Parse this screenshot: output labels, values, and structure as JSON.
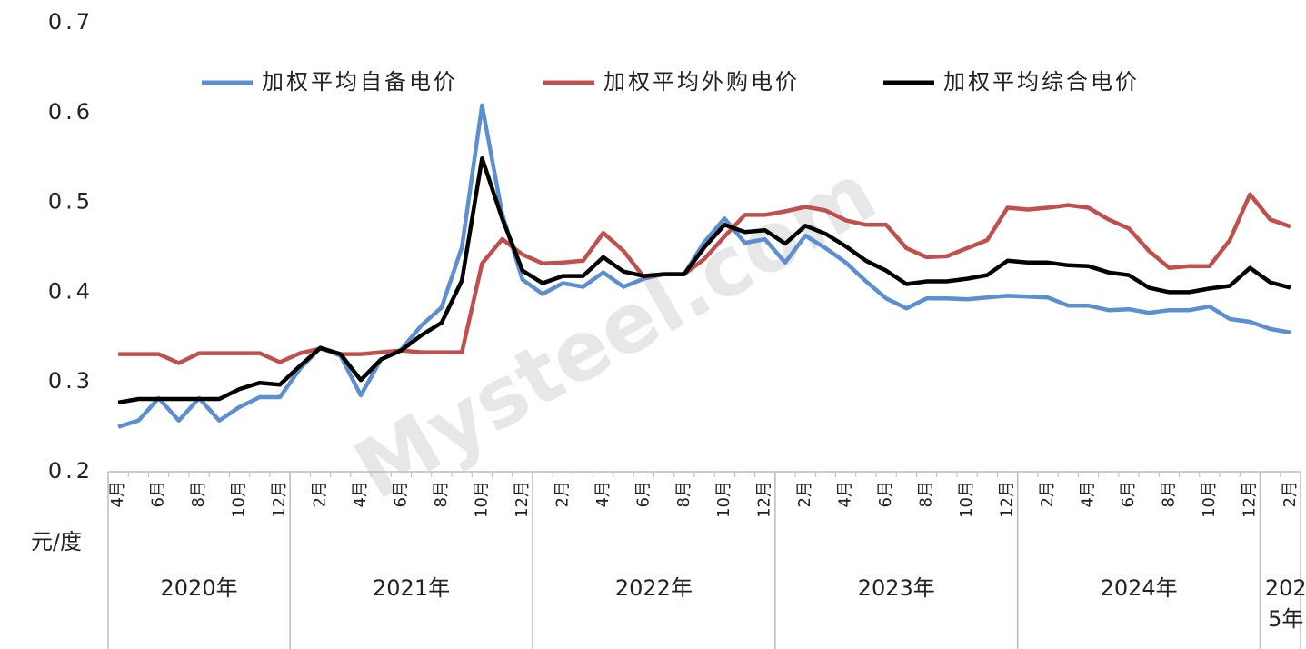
{
  "chart_data": {
    "type": "line",
    "y_unit_label": "元/度",
    "watermark": "Mysteel.com",
    "categories": [
      "4月",
      null,
      "6月",
      null,
      "8月",
      null,
      "10月",
      null,
      "12月",
      null,
      "2月",
      null,
      "4月",
      null,
      "6月",
      null,
      "8月",
      null,
      "10月",
      null,
      "12月",
      null,
      "2月",
      null,
      "4月",
      null,
      "6月",
      null,
      "8月",
      null,
      "10月",
      null,
      "12月",
      null,
      "2月",
      null,
      "4月",
      null,
      "6月",
      null,
      "8月",
      null,
      "10月",
      null,
      "12月",
      null,
      "2月",
      null,
      "4月",
      null,
      "6月",
      null,
      "8月",
      null,
      "10月",
      null,
      "12月",
      null,
      "2月"
    ],
    "groups": [
      {
        "label": "2020年",
        "size": 9
      },
      {
        "label": "2021年",
        "size": 12
      },
      {
        "label": "2022年",
        "size": 12
      },
      {
        "label": "2023年",
        "size": 12
      },
      {
        "label": "2024年",
        "size": 12
      },
      {
        "label": "2025年",
        "size": 2
      }
    ],
    "series": [
      {
        "name": "加权平均自备电价",
        "color": "#5b8fd0",
        "values": [
          0.25,
          0.257,
          0.282,
          0.257,
          0.282,
          0.257,
          0.272,
          0.283,
          0.283,
          0.315,
          0.338,
          0.329,
          0.285,
          0.325,
          0.336,
          0.363,
          0.383,
          0.45,
          0.608,
          0.487,
          0.414,
          0.398,
          0.41,
          0.406,
          0.422,
          0.406,
          0.415,
          0.42,
          0.42,
          0.456,
          0.482,
          0.455,
          0.459,
          0.433,
          0.463,
          0.449,
          0.433,
          0.412,
          0.393,
          0.382,
          0.393,
          0.393,
          0.392,
          0.394,
          0.396,
          0.395,
          0.394,
          0.385,
          0.385,
          0.38,
          0.381,
          0.377,
          0.38,
          0.38,
          0.384,
          0.37,
          0.367,
          0.359,
          0.355
        ]
      },
      {
        "name": "加权平均外购电价",
        "color": "#c0504d",
        "values": [
          0.331,
          0.331,
          0.331,
          0.321,
          0.332,
          0.332,
          0.332,
          0.332,
          0.322,
          0.332,
          0.337,
          0.331,
          0.331,
          0.333,
          0.335,
          0.333,
          0.333,
          0.333,
          0.432,
          0.459,
          0.442,
          0.432,
          0.433,
          0.435,
          0.466,
          0.446,
          0.417,
          0.42,
          0.42,
          0.437,
          0.462,
          0.486,
          0.486,
          0.49,
          0.495,
          0.491,
          0.48,
          0.475,
          0.475,
          0.449,
          0.439,
          0.44,
          0.449,
          0.458,
          0.494,
          0.492,
          0.494,
          0.497,
          0.494,
          0.481,
          0.471,
          0.446,
          0.427,
          0.429,
          0.429,
          0.458,
          0.509,
          0.481,
          0.473
        ]
      },
      {
        "name": "加权平均综合电价",
        "color": "#000000",
        "values": [
          0.277,
          0.281,
          0.281,
          0.281,
          0.281,
          0.281,
          0.292,
          0.299,
          0.297,
          0.318,
          0.338,
          0.331,
          0.302,
          0.325,
          0.335,
          0.352,
          0.366,
          0.413,
          0.549,
          0.482,
          0.424,
          0.41,
          0.418,
          0.418,
          0.439,
          0.423,
          0.418,
          0.42,
          0.42,
          0.45,
          0.475,
          0.467,
          0.469,
          0.454,
          0.474,
          0.465,
          0.451,
          0.435,
          0.424,
          0.409,
          0.412,
          0.412,
          0.415,
          0.419,
          0.435,
          0.433,
          0.433,
          0.43,
          0.429,
          0.422,
          0.419,
          0.405,
          0.4,
          0.4,
          0.404,
          0.407,
          0.427,
          0.411,
          0.405
        ]
      }
    ],
    "ylim": [
      0.2,
      0.7
    ],
    "yticks": [
      0.2,
      0.3,
      0.4,
      0.5,
      0.6,
      0.7
    ],
    "grid": false,
    "legend": "top"
  }
}
